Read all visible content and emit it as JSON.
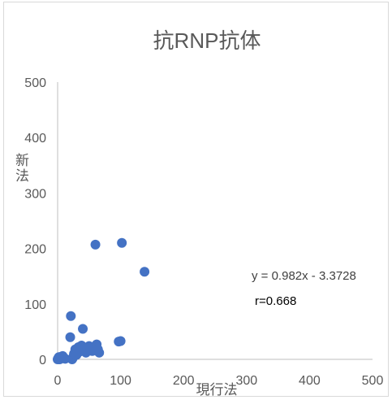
{
  "chart_data": {
    "type": "scatter",
    "title": "抗RNP抗体",
    "xlabel": "現行法",
    "ylabel": "新法",
    "xlim": [
      0,
      500
    ],
    "ylim": [
      0,
      500
    ],
    "xticks": [
      "0",
      "100",
      "200",
      "300",
      "400",
      "500"
    ],
    "yticks": [
      "0",
      "100",
      "200",
      "300",
      "400",
      "500"
    ],
    "grid": false,
    "marker_color": "#4472C4",
    "axis_color": "#BFBFBF",
    "text_color": "#595959",
    "points": [
      {
        "x": 0,
        "y": 0
      },
      {
        "x": 1,
        "y": 2
      },
      {
        "x": 2,
        "y": 4
      },
      {
        "x": 3,
        "y": 0
      },
      {
        "x": 4,
        "y": 3
      },
      {
        "x": 5,
        "y": 1
      },
      {
        "x": 6,
        "y": 5
      },
      {
        "x": 7,
        "y": 2
      },
      {
        "x": 8,
        "y": 6
      },
      {
        "x": 10,
        "y": 3
      },
      {
        "x": 12,
        "y": 1
      },
      {
        "x": 20,
        "y": 40
      },
      {
        "x": 21,
        "y": 78
      },
      {
        "x": 23,
        "y": 0
      },
      {
        "x": 24,
        "y": 2
      },
      {
        "x": 25,
        "y": 5
      },
      {
        "x": 26,
        "y": 10
      },
      {
        "x": 28,
        "y": 18
      },
      {
        "x": 30,
        "y": 8
      },
      {
        "x": 33,
        "y": 22
      },
      {
        "x": 35,
        "y": 14
      },
      {
        "x": 38,
        "y": 25
      },
      {
        "x": 40,
        "y": 55
      },
      {
        "x": 42,
        "y": 18
      },
      {
        "x": 45,
        "y": 12
      },
      {
        "x": 47,
        "y": 20
      },
      {
        "x": 50,
        "y": 24
      },
      {
        "x": 55,
        "y": 15
      },
      {
        "x": 60,
        "y": 207
      },
      {
        "x": 62,
        "y": 27
      },
      {
        "x": 64,
        "y": 18
      },
      {
        "x": 66,
        "y": 12
      },
      {
        "x": 97,
        "y": 32
      },
      {
        "x": 100,
        "y": 33
      },
      {
        "x": 102,
        "y": 210
      },
      {
        "x": 138,
        "y": 158
      }
    ],
    "trendline": {
      "equation": "y = 0.982x - 3.3728",
      "slope": 0.982,
      "intercept": -3.3728,
      "shown": false
    },
    "annotations": {
      "correlation": "r=0.668"
    }
  }
}
